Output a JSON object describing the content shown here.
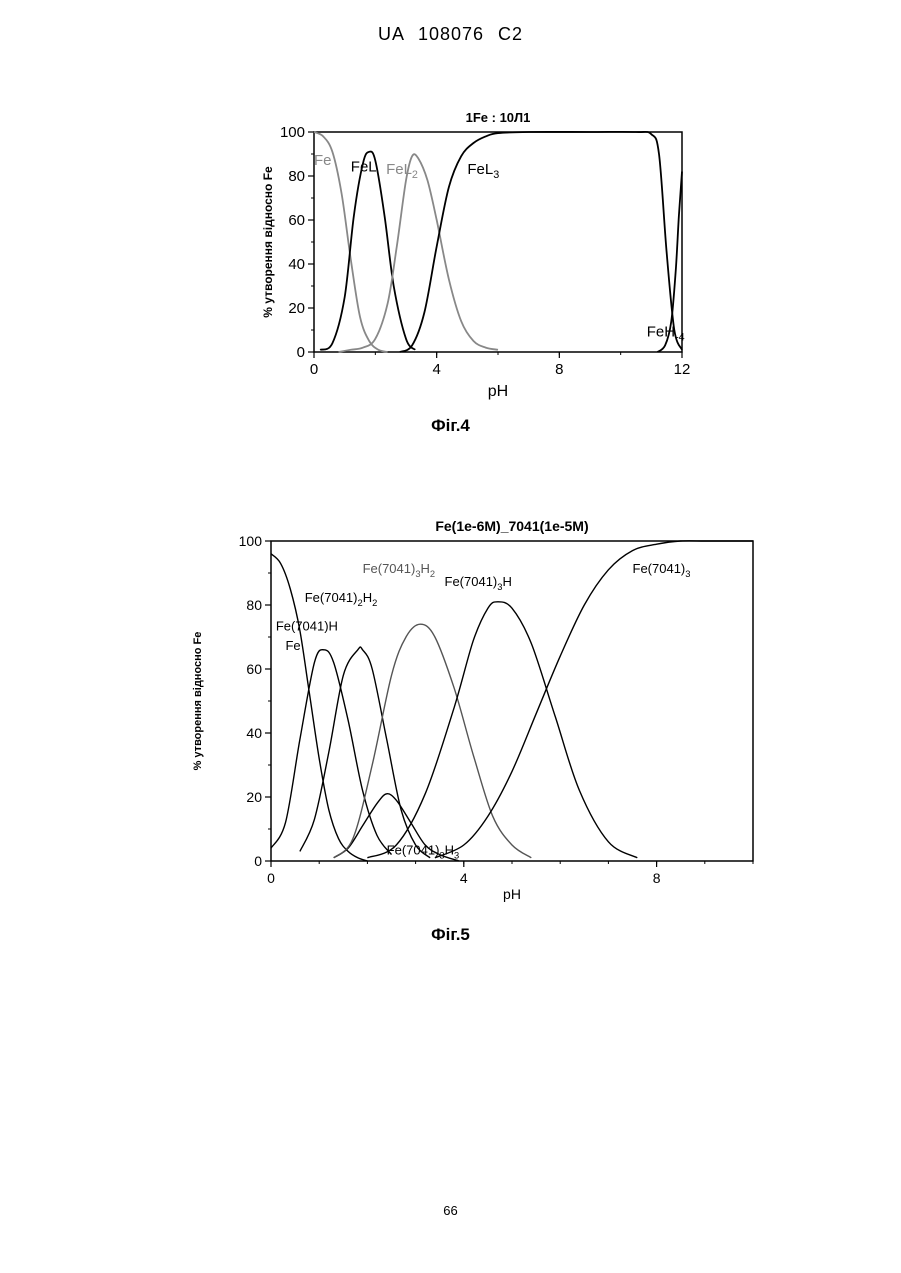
{
  "header": {
    "text": "UA   108076   C2"
  },
  "page_number": "66",
  "chart_data": [
    {
      "type": "line",
      "caption": "Фіг.4",
      "title": "1Fe : 10Л1",
      "xlabel": "pH",
      "ylabel": "% утворення відносно Fe",
      "xlim": [
        0,
        12
      ],
      "ylim": [
        0,
        100
      ],
      "xticks": [
        0,
        4,
        8,
        12
      ],
      "yticks": [
        0,
        20,
        40,
        60,
        80,
        100
      ],
      "grid": false,
      "series": [
        {
          "name": "Fe",
          "color": "#888888",
          "label": "Fe",
          "label_x": 0,
          "label_y": 85,
          "x": [
            0,
            0.3,
            0.6,
            0.9,
            1.2,
            1.5,
            1.8,
            2.1,
            2.4
          ],
          "y": [
            100,
            98,
            91,
            72,
            42,
            16,
            5,
            1,
            0
          ]
        },
        {
          "name": "FeL",
          "color": "#000000",
          "label": "FeL",
          "label_x": 1.2,
          "label_y": 82,
          "x": [
            0.2,
            0.6,
            1.0,
            1.3,
            1.6,
            1.8,
            2.0,
            2.3,
            2.6,
            3.0,
            3.3
          ],
          "y": [
            1,
            4,
            25,
            62,
            86,
            91,
            87,
            62,
            30,
            6,
            1
          ]
        },
        {
          "name": "FeL2",
          "color": "#888888",
          "label": "FeL",
          "label_sub": "2",
          "label_x": 2.35,
          "label_y": 81,
          "x": [
            0.8,
            1.2,
            1.6,
            2.0,
            2.4,
            2.7,
            3.0,
            3.2,
            3.4,
            3.7,
            4.0,
            4.4,
            4.8,
            5.2,
            5.6,
            6.0
          ],
          "y": [
            0,
            1,
            2,
            6,
            22,
            48,
            78,
            89,
            88,
            78,
            60,
            33,
            14,
            5,
            2,
            1
          ]
        },
        {
          "name": "FeL3",
          "color": "#000000",
          "label": "FeL",
          "label_sub": "3",
          "label_x": 5.0,
          "label_y": 81,
          "x": [
            2.8,
            3.2,
            3.6,
            4.0,
            4.4,
            4.8,
            5.2,
            5.6,
            6.0,
            7,
            9,
            10.5,
            11.0,
            11.25,
            11.5,
            11.75,
            12.0
          ],
          "y": [
            0,
            3,
            18,
            48,
            75,
            89,
            95,
            98,
            99.5,
            100,
            100,
            100,
            99,
            90,
            45,
            10,
            1
          ]
        },
        {
          "name": "FeH-4",
          "color": "#000000",
          "label": "FeH",
          "label_sub": "-4",
          "label_x": 10.85,
          "label_y": 7,
          "x": [
            11.2,
            11.45,
            11.65,
            11.8,
            11.9,
            12.0
          ],
          "y": [
            0,
            3,
            14,
            38,
            62,
            82
          ]
        }
      ]
    },
    {
      "type": "line",
      "caption": "Фіг.5",
      "title": "Fe(1e-6M)_7041(1e-5M)",
      "xlabel": "pH",
      "ylabel": "% утворення відносно Fe",
      "xlim": [
        0,
        10
      ],
      "ylim": [
        0,
        100
      ],
      "xticks": [
        0,
        4,
        8
      ],
      "yticks": [
        0,
        20,
        40,
        60,
        80,
        100
      ],
      "grid": false,
      "series": [
        {
          "name": "Fe",
          "color": "#000000",
          "label": "Fe",
          "label_x": 0.3,
          "label_y": 66,
          "x": [
            0,
            0.2,
            0.4,
            0.6,
            0.8,
            1.0,
            1.2,
            1.4,
            1.6,
            1.8,
            2.0
          ],
          "y": [
            96,
            93,
            85,
            72,
            52,
            32,
            16,
            7,
            3,
            1,
            0
          ]
        },
        {
          "name": "Fe(7041)H",
          "color": "#000000",
          "label": "Fe(7041)H",
          "label_x": 0.1,
          "label_y": 72,
          "x": [
            0,
            0.3,
            0.6,
            0.9,
            1.1,
            1.3,
            1.6,
            1.9,
            2.2,
            2.5
          ],
          "y": [
            4,
            12,
            38,
            62,
            66,
            62,
            44,
            22,
            8,
            2
          ]
        },
        {
          "name": "Fe(7041)2H2",
          "color": "#000000",
          "label": "Fe(7041)",
          "label_sub": "2",
          "label_tail": "H",
          "label_sub2": "2",
          "label_x": 0.7,
          "label_y": 81,
          "x": [
            0.6,
            0.9,
            1.2,
            1.5,
            1.8,
            1.9,
            2.1,
            2.4,
            2.7,
            3.0,
            3.3
          ],
          "y": [
            3,
            13,
            34,
            58,
            66,
            66,
            60,
            38,
            16,
            5,
            1
          ]
        },
        {
          "name": "Fe(7041)3H3",
          "color": "#000000",
          "label": "Fe(7041)",
          "label_sub": "3",
          "label_tail": "H",
          "label_sub2": "3",
          "label_x": 2.4,
          "label_y": 2,
          "x": [
            1.3,
            1.6,
            1.9,
            2.2,
            2.4,
            2.6,
            2.9,
            3.2,
            3.5,
            3.9
          ],
          "y": [
            1,
            4,
            11,
            18,
            21,
            19,
            12,
            5,
            2,
            0
          ]
        },
        {
          "name": "Fe(7041)3H2",
          "color": "#555555",
          "label": "Fe(7041)",
          "label_sub": "3",
          "label_tail": "H",
          "label_sub2": "2",
          "label_x": 1.9,
          "label_y": 90,
          "x": [
            1.3,
            1.7,
            2.1,
            2.5,
            2.8,
            3.1,
            3.4,
            3.8,
            4.2,
            4.6,
            5.0,
            5.4
          ],
          "y": [
            1,
            7,
            30,
            58,
            70,
            74,
            70,
            54,
            33,
            14,
            5,
            1
          ]
        },
        {
          "name": "Fe(7041)3H",
          "color": "#000000",
          "label": "Fe(7041)",
          "label_sub": "3",
          "label_tail": "H",
          "label_x": 3.6,
          "label_y": 86,
          "x": [
            2.0,
            2.6,
            3.2,
            3.8,
            4.2,
            4.5,
            4.7,
            5.0,
            5.4,
            5.9,
            6.4,
            7.0,
            7.6
          ],
          "y": [
            1,
            5,
            21,
            48,
            69,
            79,
            81,
            79,
            68,
            45,
            22,
            6,
            1
          ]
        },
        {
          "name": "Fe(7041)3",
          "color": "#000000",
          "label": "Fe(7041)",
          "label_sub": "3",
          "label_x": 7.5,
          "label_y": 90,
          "x": [
            3.4,
            4.0,
            4.5,
            5.0,
            5.5,
            6.0,
            6.5,
            7.0,
            7.5,
            8.0,
            8.5,
            9.0,
            9.5,
            10
          ],
          "y": [
            1,
            5,
            14,
            28,
            46,
            64,
            80,
            91,
            97,
            99,
            100,
            100,
            100,
            100
          ]
        }
      ]
    }
  ]
}
